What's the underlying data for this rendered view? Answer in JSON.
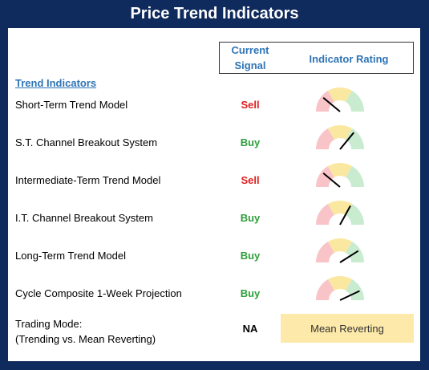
{
  "title": "Price Trend Indicators",
  "header": {
    "current_signal": "Current\nSignal",
    "indicator_rating": "Indicator Rating"
  },
  "section_label": "Trend Indicators",
  "colors": {
    "sell": "#e02020",
    "buy": "#2e9e3a",
    "header_blue": "#2e74b5",
    "frame": "#0f2a5c"
  },
  "rows": [
    {
      "label": "Short-Term Trend Model",
      "signal": "Sell",
      "rating": 0.22
    },
    {
      "label": "S.T. Channel Breakout System",
      "signal": "Buy",
      "rating": 0.72
    },
    {
      "label": "Intermediate-Term Trend Model",
      "signal": "Sell",
      "rating": 0.22
    },
    {
      "label": "I.T. Channel Breakout System",
      "signal": "Buy",
      "rating": 0.66
    },
    {
      "label": "Long-Term Trend Model",
      "signal": "Buy",
      "rating": 0.82
    },
    {
      "label": "Cycle Composite 1-Week Projection",
      "signal": "Buy",
      "rating": 0.86
    }
  ],
  "trading_mode": {
    "label_line1": "Trading Mode:",
    "label_line2": "(Trending vs. Mean Reverting)",
    "signal": "NA",
    "value": "Mean Reverting"
  }
}
